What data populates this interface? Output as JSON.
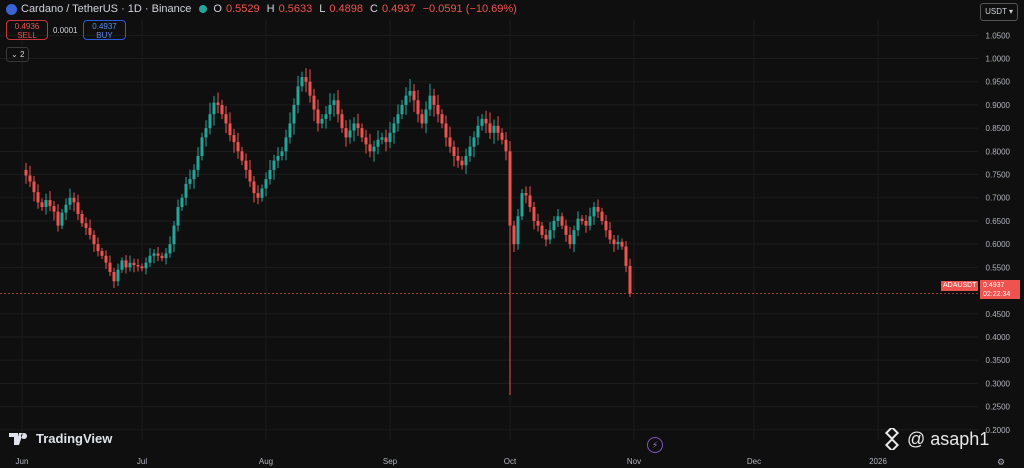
{
  "header": {
    "title": "Cardano / TetherUS · 1D · Binance",
    "o_label": "O",
    "o_value": "0.5529",
    "h_label": "H",
    "h_value": "0.5633",
    "l_label": "L",
    "l_value": "0.4898",
    "c_label": "C",
    "c_value": "0.4937",
    "change": "−0.0591 (−10.69%)"
  },
  "trade": {
    "sell_price": "0.4936",
    "sell_label": "SELL",
    "spread": "0.0001",
    "buy_price": "0.4937",
    "buy_label": "BUY"
  },
  "indicator_count": "2",
  "currency": "USDT",
  "price_tag": {
    "symbol": "ADAUSDT",
    "price": "0.4937",
    "countdown": "02:22:34"
  },
  "branding": {
    "tv": "TradingView",
    "watermark": "@ asaph1"
  },
  "icons": {
    "logo": "cardano-logo-icon",
    "bolt": "lightning-icon",
    "gear": "gear-icon",
    "watermark": "binance-icon"
  },
  "colors": {
    "up": "#26a69a",
    "down": "#ef5350",
    "background": "#0f0f0f"
  },
  "chart_data": {
    "type": "candlestick",
    "interval": "1D",
    "symbol": "ADAUSDT",
    "y_ticks": [
      "1.0500",
      "1.0000",
      "0.9500",
      "0.9000",
      "0.8500",
      "0.8000",
      "0.7500",
      "0.7000",
      "0.6500",
      "0.6000",
      "0.5500",
      "0.4500",
      "0.4000",
      "0.3500",
      "0.3000",
      "0.2500",
      "0.2000"
    ],
    "ylim": [
      0.178,
      1.083
    ],
    "x_ticks": [
      {
        "label": "Jun",
        "day": 0
      },
      {
        "label": "Jul",
        "day": 30
      },
      {
        "label": "Aug",
        "day": 61
      },
      {
        "label": "Sep",
        "day": 92
      },
      {
        "label": "Oct",
        "day": 122
      },
      {
        "label": "Nov",
        "day": 153
      },
      {
        "label": "Dec",
        "day": 183
      },
      {
        "label": "2026",
        "day": 214
      }
    ],
    "current_price": 0.4937,
    "closes": [
      0.76,
      0.748,
      0.735,
      0.712,
      0.69,
      0.68,
      0.695,
      0.682,
      0.67,
      0.64,
      0.668,
      0.685,
      0.7,
      0.69,
      0.665,
      0.645,
      0.635,
      0.62,
      0.6,
      0.585,
      0.575,
      0.56,
      0.54,
      0.52,
      0.545,
      0.565,
      0.55,
      0.56,
      0.555,
      0.552,
      0.548,
      0.56,
      0.575,
      0.58,
      0.575,
      0.57,
      0.58,
      0.6,
      0.64,
      0.68,
      0.7,
      0.73,
      0.74,
      0.76,
      0.79,
      0.83,
      0.85,
      0.88,
      0.905,
      0.9,
      0.88,
      0.86,
      0.835,
      0.82,
      0.8,
      0.78,
      0.76,
      0.735,
      0.71,
      0.7,
      0.72,
      0.74,
      0.76,
      0.78,
      0.79,
      0.8,
      0.83,
      0.86,
      0.9,
      0.94,
      0.96,
      0.95,
      0.92,
      0.89,
      0.86,
      0.87,
      0.88,
      0.9,
      0.91,
      0.88,
      0.85,
      0.83,
      0.845,
      0.86,
      0.85,
      0.83,
      0.815,
      0.8,
      0.81,
      0.825,
      0.83,
      0.82,
      0.84,
      0.86,
      0.88,
      0.9,
      0.92,
      0.93,
      0.91,
      0.88,
      0.86,
      0.89,
      0.92,
      0.9,
      0.88,
      0.86,
      0.83,
      0.81,
      0.79,
      0.78,
      0.77,
      0.79,
      0.81,
      0.83,
      0.855,
      0.87,
      0.86,
      0.84,
      0.855,
      0.84,
      0.825,
      0.8,
      0.64,
      0.6,
      0.66,
      0.71,
      0.705,
      0.68,
      0.65,
      0.64,
      0.62,
      0.61,
      0.63,
      0.65,
      0.66,
      0.64,
      0.62,
      0.6,
      0.63,
      0.655,
      0.65,
      0.64,
      0.66,
      0.68,
      0.67,
      0.65,
      0.63,
      0.61,
      0.6,
      0.605,
      0.595,
      0.553,
      0.4937
    ]
  }
}
